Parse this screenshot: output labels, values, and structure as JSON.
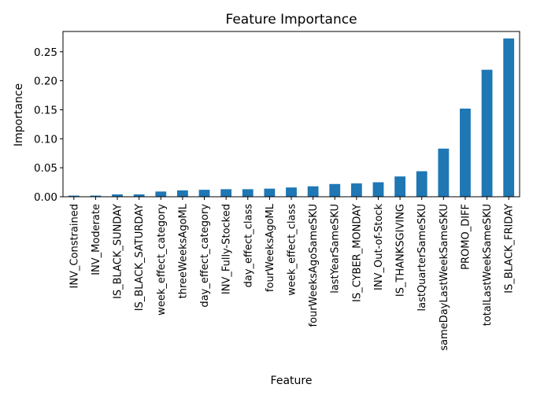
{
  "chart_data": {
    "type": "bar",
    "title": "Feature Importance",
    "xlabel": "Feature",
    "ylabel": "Importance",
    "ylim": [
      0,
      0.285
    ],
    "yticks": [
      0.0,
      0.05,
      0.1,
      0.15,
      0.2,
      0.25
    ],
    "ytick_labels": [
      "0.00",
      "0.05",
      "0.10",
      "0.15",
      "0.20",
      "0.25"
    ],
    "grid": false,
    "bar_color": "#1f77b4",
    "categories": [
      "INV_Constrained",
      "INV_Moderate",
      "IS_BLACK_SUNDAY",
      "IS_BLACK_SATURDAY",
      "week_effect_category",
      "threeWeeksAgoML",
      "day_effect_category",
      "INV_Fully-Stocked",
      "day_effect_class",
      "fourWeeksAgoML",
      "week_effect_class",
      "fourWeeksAgoSameSKU",
      "lastYearSameSKU",
      "IS_CYBER_MONDAY",
      "INV_Out-of-Stock",
      "IS_THANKSGIVING",
      "lastQuarterSameSKU",
      "sameDayLastWeekSameSKU",
      "PROMO_DIFF",
      "totalLastWeekSameSKU",
      "IS_BLACK_FRIDAY"
    ],
    "values": [
      0.002,
      0.002,
      0.004,
      0.004,
      0.009,
      0.011,
      0.012,
      0.013,
      0.013,
      0.014,
      0.016,
      0.018,
      0.022,
      0.023,
      0.025,
      0.035,
      0.044,
      0.083,
      0.152,
      0.219,
      0.273
    ]
  }
}
